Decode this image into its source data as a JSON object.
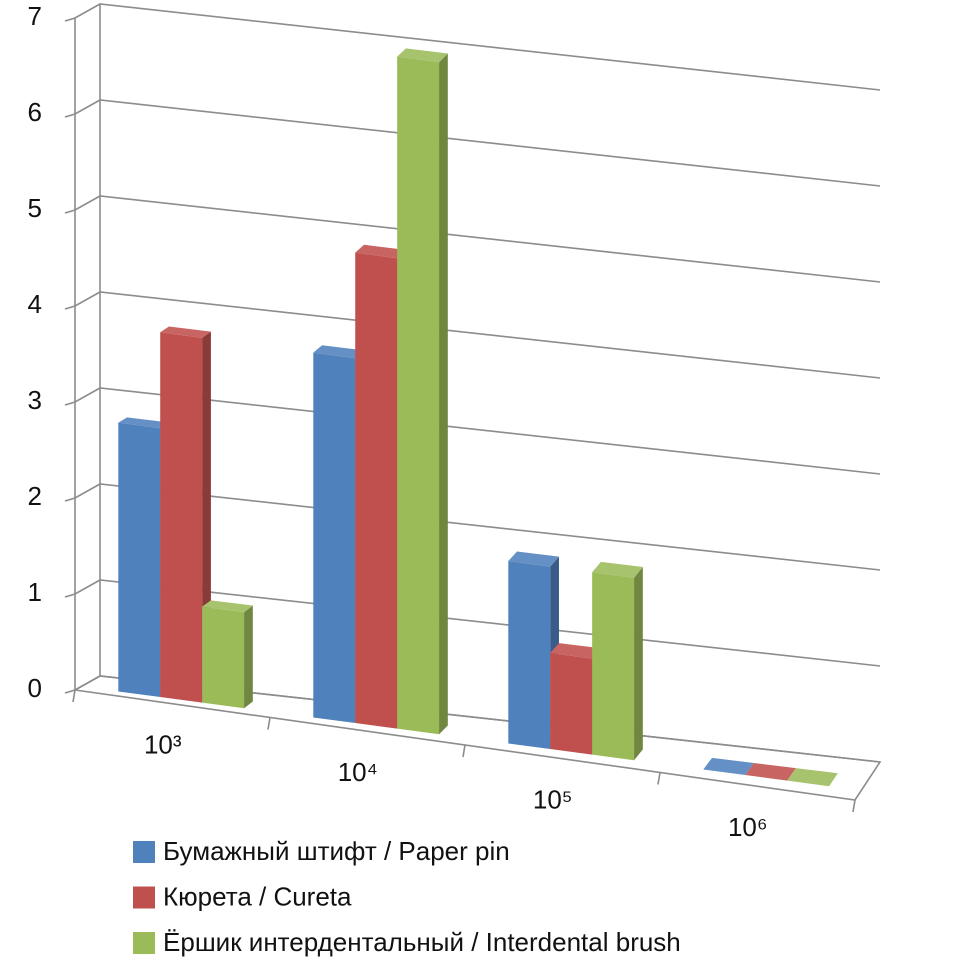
{
  "chart_data": {
    "type": "bar3d",
    "categories": [
      "10³",
      "10⁴",
      "10⁵",
      "10⁶"
    ],
    "series": [
      {
        "name": "Бумажный штифт / Paper pin",
        "color": "#4f81bd",
        "values": [
          2.8,
          3.8,
          1.9,
          0
        ]
      },
      {
        "name": "Кюрета / Cureta",
        "color": "#c0504d",
        "values": [
          3.8,
          4.9,
          1.0,
          0
        ]
      },
      {
        "name": "Ёршик интердентальный / Interdental brush",
        "color": "#9bbb59",
        "values": [
          1.0,
          7.0,
          1.9,
          0
        ]
      }
    ],
    "ylim": [
      0,
      7
    ],
    "yticks": [
      0,
      1,
      2,
      3,
      4,
      5,
      6,
      7
    ],
    "grid": true,
    "legend": "bottom"
  }
}
